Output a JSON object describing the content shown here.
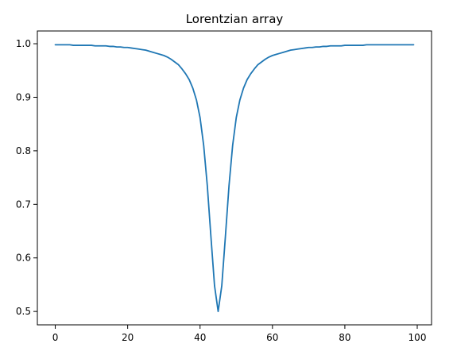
{
  "chart_data": {
    "type": "line",
    "title": "Lorentzian array",
    "xlabel": "",
    "ylabel": "",
    "xlim": [
      -4.95,
      103.95
    ],
    "ylim": [
      0.475,
      1.0238
    ],
    "x_ticks": [
      0,
      20,
      40,
      60,
      80,
      100
    ],
    "y_ticks": [
      0.5,
      0.6,
      0.7,
      0.8,
      0.9,
      1.0
    ],
    "x_tick_labels": [
      "0",
      "20",
      "40",
      "60",
      "80",
      "100"
    ],
    "y_tick_labels": [
      "0.5",
      "0.6",
      "0.7",
      "0.8",
      "0.9",
      "1.0"
    ],
    "grid": false,
    "legend": "none",
    "series": [
      {
        "color": "#1f77b4",
        "x": [
          0,
          1,
          2,
          3,
          4,
          5,
          6,
          7,
          8,
          9,
          10,
          11,
          12,
          13,
          14,
          15,
          16,
          17,
          18,
          19,
          20,
          21,
          22,
          23,
          24,
          25,
          26,
          27,
          28,
          29,
          30,
          31,
          32,
          33,
          34,
          35,
          36,
          37,
          38,
          39,
          40,
          41,
          42,
          43,
          44,
          45,
          46,
          47,
          48,
          49,
          50,
          51,
          52,
          53,
          54,
          55,
          56,
          57,
          58,
          59,
          60,
          61,
          62,
          63,
          64,
          65,
          66,
          67,
          68,
          69,
          70,
          71,
          72,
          73,
          74,
          75,
          76,
          77,
          78,
          79,
          80,
          81,
          82,
          83,
          84,
          85,
          86,
          87,
          88,
          89,
          90,
          91,
          92,
          93,
          94,
          95,
          96,
          97,
          98,
          99
        ],
        "values": [
          0.998,
          0.998,
          0.998,
          0.998,
          0.998,
          0.997,
          0.997,
          0.997,
          0.997,
          0.997,
          0.997,
          0.996,
          0.996,
          0.996,
          0.996,
          0.995,
          0.995,
          0.994,
          0.994,
          0.993,
          0.993,
          0.992,
          0.991,
          0.99,
          0.989,
          0.988,
          0.986,
          0.984,
          0.982,
          0.98,
          0.978,
          0.975,
          0.971,
          0.966,
          0.961,
          0.953,
          0.944,
          0.933,
          0.917,
          0.895,
          0.862,
          0.81,
          0.735,
          0.64,
          0.548,
          0.5,
          0.548,
          0.64,
          0.735,
          0.81,
          0.862,
          0.895,
          0.917,
          0.933,
          0.944,
          0.953,
          0.961,
          0.966,
          0.971,
          0.975,
          0.978,
          0.98,
          0.982,
          0.984,
          0.986,
          0.988,
          0.989,
          0.99,
          0.991,
          0.992,
          0.993,
          0.993,
          0.994,
          0.994,
          0.995,
          0.995,
          0.996,
          0.996,
          0.996,
          0.996,
          0.997,
          0.997,
          0.997,
          0.997,
          0.997,
          0.997,
          0.998,
          0.998,
          0.998,
          0.998,
          0.998,
          0.998,
          0.998,
          0.998,
          0.998,
          0.998,
          0.998,
          0.998,
          0.998,
          0.998
        ]
      }
    ]
  }
}
